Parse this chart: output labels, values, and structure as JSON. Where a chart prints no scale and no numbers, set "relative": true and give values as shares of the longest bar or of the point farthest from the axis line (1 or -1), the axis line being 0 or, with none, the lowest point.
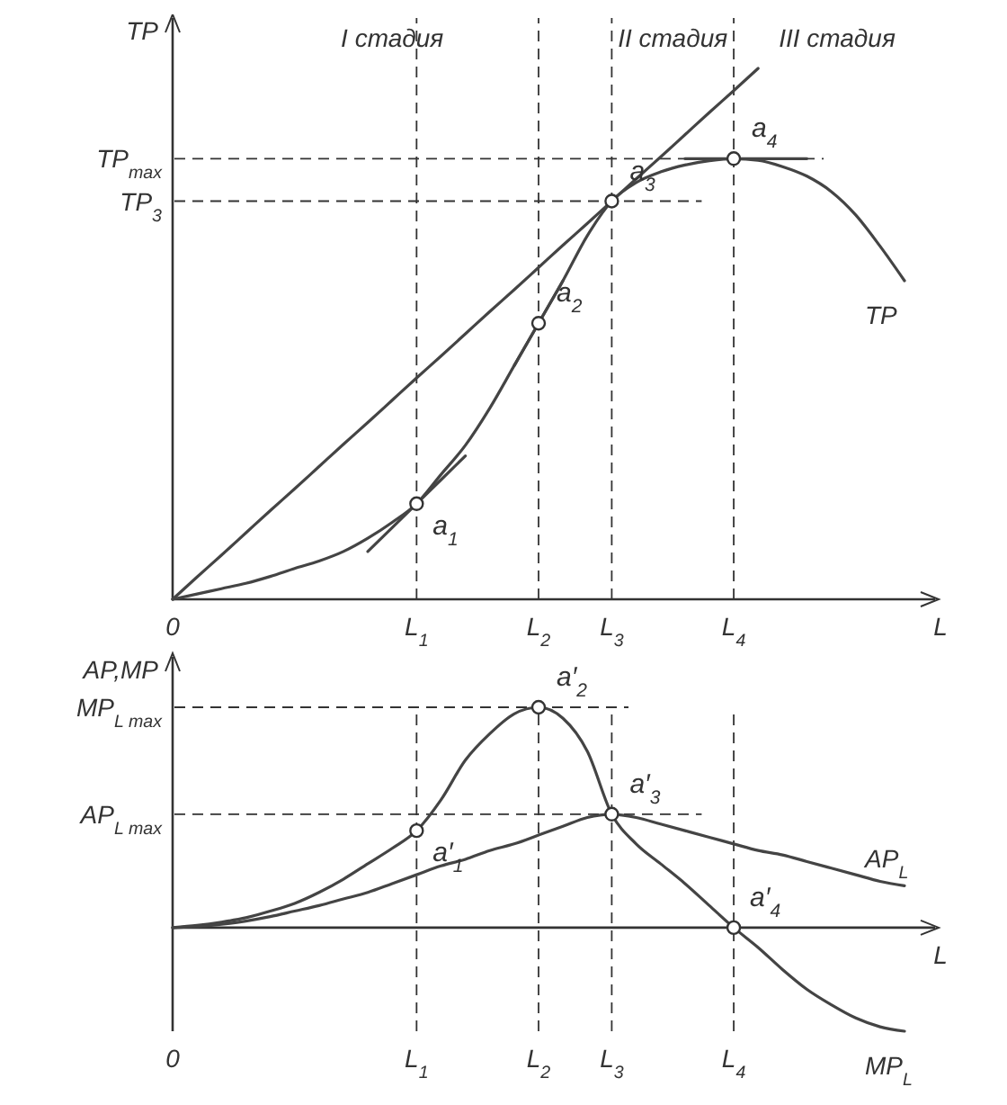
{
  "chart_data": [
    {
      "type": "line",
      "relative": true,
      "ylabel": "TP",
      "xlabel": "L",
      "categories": [
        "0",
        null,
        null,
        null,
        null,
        null,
        null,
        null,
        null,
        null,
        "L$_{1}$",
        null,
        null,
        null,
        null,
        "L$_{2}$",
        null,
        null,
        "L$_{3}$",
        null,
        null,
        null,
        null,
        "L$_{4}$",
        null,
        null,
        null,
        null,
        null,
        null,
        null
      ],
      "series": [
        {
          "name": "TP",
          "color": "#444444",
          "values": [
            0,
            0.01,
            0.02,
            0.03,
            0.043,
            0.058,
            0.072,
            0.09,
            0.115,
            0.145,
            0.18,
            0.235,
            0.29,
            0.36,
            0.44,
            0.52,
            0.6,
            0.685,
            0.75,
            0.785,
            0.805,
            0.818,
            0.826,
            0.83,
            0.827,
            0.815,
            0.797,
            0.768,
            0.724,
            0.665,
            0.6
          ]
        },
        {
          "color": "#444444",
          "values": [
            0,
            0.042,
            0.083,
            0.125,
            0.167,
            0.208,
            0.25,
            0.292,
            0.333,
            0.375,
            0.417,
            0.458,
            0.5,
            0.542,
            0.583,
            0.625,
            0.667,
            0.708,
            0.75,
            0.792,
            0.833,
            0.875,
            0.917,
            0.958,
            1,
            null,
            null,
            null,
            null,
            null,
            null
          ]
        },
        {
          "color": "#444444",
          "values": [
            null,
            null,
            null,
            null,
            null,
            null,
            null,
            null,
            0.09,
            0.135,
            0.18,
            0.225,
            0.27,
            null,
            null,
            null,
            null,
            null,
            null,
            null,
            null,
            null,
            null,
            null,
            null,
            null,
            null,
            null,
            null,
            null,
            null
          ]
        },
        {
          "color": "#444444",
          "values": [
            null,
            null,
            null,
            null,
            null,
            null,
            null,
            null,
            null,
            null,
            null,
            null,
            null,
            null,
            0.44,
            0.52,
            0.6,
            null,
            null,
            null,
            null,
            null,
            null,
            null,
            null,
            null,
            null,
            null,
            null,
            null,
            null
          ]
        },
        {
          "color": "#444444",
          "values": [
            null,
            null,
            null,
            null,
            null,
            null,
            null,
            null,
            null,
            null,
            null,
            null,
            null,
            null,
            null,
            null,
            null,
            null,
            null,
            null,
            null,
            0.83,
            0.83,
            0.83,
            0.83,
            0.83,
            0.83,
            null,
            null,
            null,
            null
          ]
        }
      ],
      "ref_lines": [
        {
          "axis": "y",
          "value": 0.83,
          "label": "TP$_{max}$",
          "line_style": "dashed"
        },
        {
          "axis": "y",
          "value": 0.75,
          "label": "TP$_{3}$",
          "line_style": "dashed"
        },
        {
          "axis": "x",
          "value": "L$_{1}$",
          "line_style": "dashed"
        },
        {
          "axis": "x",
          "value": "L$_{2}$",
          "line_style": "dashed"
        },
        {
          "axis": "x",
          "value": "L$_{3}$",
          "line_style": "dashed"
        },
        {
          "axis": "x",
          "value": "L$_{4}$",
          "line_style": "dashed"
        }
      ],
      "annotations": [
        "I стадия",
        "II стадия",
        "III стадия",
        {
          "text": "a$_{1}$",
          "x": "L$_{1}$",
          "y": 0.18
        },
        {
          "text": "a$_{2}$",
          "x": "L$_{2}$",
          "y": 0.52
        },
        {
          "text": "a$_{3}$",
          "x": "L$_{3}$",
          "y": 0.75
        },
        {
          "text": "a$_{4}$",
          "x": "L$_{4}$",
          "y": 0.83
        }
      ]
    },
    {
      "type": "line",
      "relative": true,
      "ylabel": "AP,MP",
      "xlabel": "L",
      "categories": [
        "0",
        null,
        null,
        null,
        null,
        null,
        null,
        null,
        null,
        null,
        "L$_{1}$",
        null,
        null,
        null,
        null,
        "L$_{2}$",
        null,
        null,
        "L$_{3}$",
        null,
        null,
        null,
        null,
        "L$_{4}$",
        null,
        null,
        null,
        null,
        null,
        null,
        null
      ],
      "series": [
        {
          "name": "MP$_{L}$",
          "color": "#444444",
          "values": [
            0,
            0.01,
            0.025,
            0.045,
            0.075,
            0.11,
            0.16,
            0.22,
            0.29,
            0.36,
            0.44,
            0.58,
            0.76,
            0.88,
            0.97,
            1,
            0.95,
            0.8,
            0.515,
            0.38,
            0.29,
            0.2,
            0.1,
            0,
            -0.09,
            -0.19,
            -0.28,
            -0.35,
            -0.41,
            -0.45,
            -0.47
          ]
        },
        {
          "name": "AP$_{L}$",
          "color": "#444444",
          "values": [
            0,
            0.005,
            0.015,
            0.03,
            0.05,
            0.075,
            0.1,
            0.13,
            0.16,
            0.2,
            0.24,
            0.28,
            0.31,
            0.35,
            0.38,
            0.42,
            0.46,
            0.5,
            0.515,
            0.5,
            0.47,
            0.44,
            0.41,
            0.38,
            0.35,
            0.33,
            0.3,
            0.27,
            0.24,
            0.21,
            0.19
          ]
        }
      ],
      "ref_lines": [
        {
          "axis": "y",
          "value": 1,
          "label": "MP$_{L max}$",
          "line_style": "dashed"
        },
        {
          "axis": "y",
          "value": 0.515,
          "label": "AP$_{L max}$",
          "line_style": "dashed"
        },
        {
          "axis": "x",
          "value": "L$_{1}$",
          "line_style": "dashed"
        },
        {
          "axis": "x",
          "value": "L$_{2}$",
          "line_style": "dashed"
        },
        {
          "axis": "x",
          "value": "L$_{3}$",
          "line_style": "dashed"
        },
        {
          "axis": "x",
          "value": "L$_{4}$",
          "line_style": "dashed"
        }
      ],
      "annotations": [
        {
          "text": "a′$_{1}$",
          "x": "L$_{1}$",
          "y": 0.44
        },
        {
          "text": "a′$_{2}$",
          "x": "L$_{2}$",
          "y": 1
        },
        {
          "text": "a′$_{3}$",
          "x": "L$_{3}$",
          "y": 0.515
        },
        {
          "text": "a′$_{4}$",
          "x": "L$_{4}$",
          "y": 0
        }
      ]
    }
  ]
}
